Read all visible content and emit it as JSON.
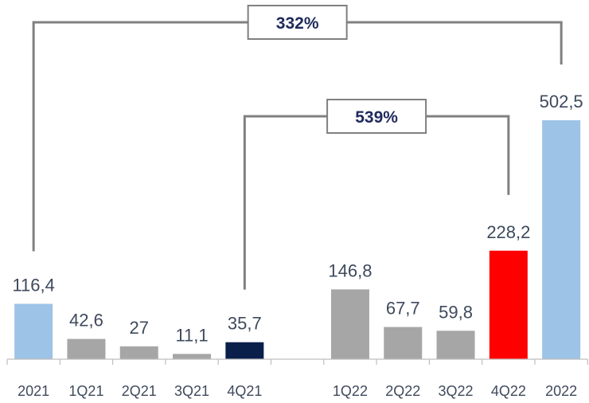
{
  "chart_data": {
    "type": "bar",
    "categories": [
      "2021",
      "1Q21",
      "2Q21",
      "3Q21",
      "4Q21",
      "",
      "1Q22",
      "2Q22",
      "3Q22",
      "4Q22",
      "2022"
    ],
    "values": [
      116.4,
      42.6,
      27,
      11.1,
      35.7,
      null,
      146.8,
      67.7,
      59.8,
      228.2,
      502.5
    ],
    "value_labels": [
      "116,4",
      "42,6",
      "27",
      "11,1",
      "35,7",
      "",
      "146,8",
      "67,7",
      "59,8",
      "228,2",
      "502,5"
    ],
    "bar_colors": [
      "#9dc3e6",
      "#a6a6a6",
      "#a6a6a6",
      "#a6a6a6",
      "#0b1f4b",
      null,
      "#a6a6a6",
      "#a6a6a6",
      "#a6a6a6",
      "#ff0000",
      "#9dc3e6"
    ],
    "title": "",
    "xlabel": "",
    "ylabel": "",
    "ylim": [
      0,
      502.5
    ],
    "grid": false,
    "annotations": [
      {
        "label": "332%",
        "from": "2021",
        "to": "2022"
      },
      {
        "label": "539%",
        "from": "4Q21",
        "to": "4Q22"
      }
    ]
  },
  "colors": {
    "axis": "#bfbfbf",
    "bracket": "#808080",
    "text": "#3e4a5c",
    "annotation_text": "#1f2a5c"
  }
}
